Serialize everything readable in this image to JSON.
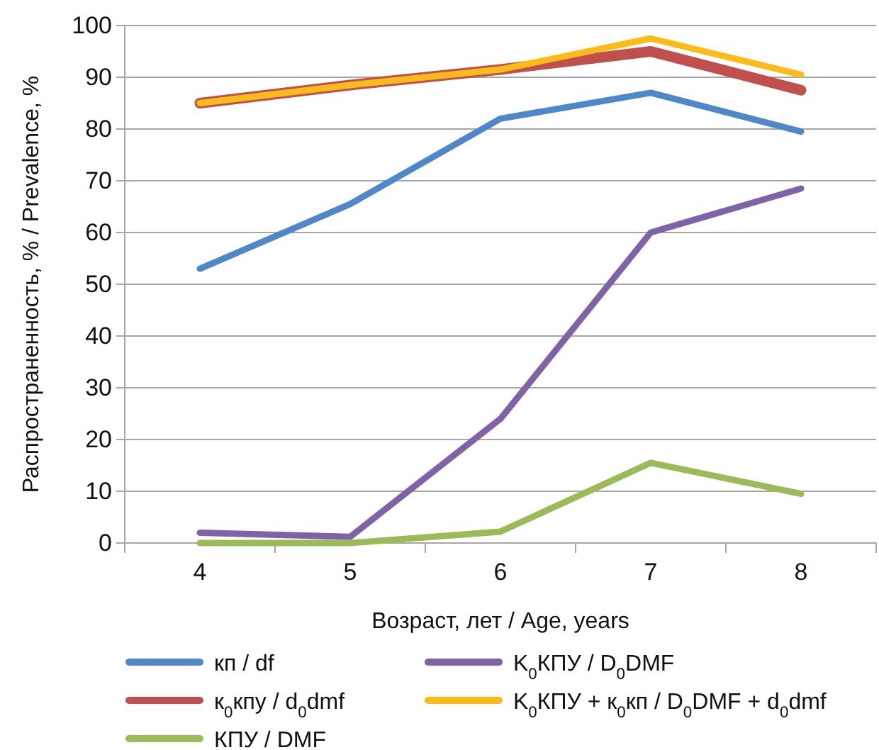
{
  "chart_data": {
    "type": "line",
    "xlabel": "Возраст, лет / Age, years",
    "ylabel": "Распространенность, % / Prevalence, %",
    "categories": [
      "4",
      "5",
      "6",
      "7",
      "8"
    ],
    "ylim": [
      0,
      100
    ],
    "yticks": [
      0,
      10,
      20,
      30,
      40,
      50,
      60,
      70,
      80,
      90,
      100
    ],
    "grid": "y",
    "legend": "bottom",
    "marker": "none",
    "line_style": "solid",
    "series": [
      {
        "name": "кп / df",
        "color": "#4f88c8",
        "values": [
          53,
          65.5,
          82,
          87,
          79.5
        ]
      },
      {
        "name": "K$_{0}$КПУ / D$_{0}$DMF",
        "color": "#7e63a6",
        "values": [
          2,
          1.2,
          24,
          60,
          68.5
        ]
      },
      {
        "name": "к$_{0}$кпу / d$_{0}$dmf",
        "color": "#c0504d",
        "values": [
          85,
          88.5,
          91.5,
          95,
          87.5
        ]
      },
      {
        "name": "K$_{0}$КПУ + к$_{0}$кп / D$_{0}$DMF + d$_{0}$dmf",
        "color": "#fbbc1a",
        "values": [
          85,
          88.5,
          91.5,
          97.5,
          90.5
        ]
      },
      {
        "name": "КПУ / DMF",
        "color": "#9bbb59",
        "values": [
          0,
          0,
          2.2,
          15.5,
          9.5
        ]
      }
    ]
  }
}
